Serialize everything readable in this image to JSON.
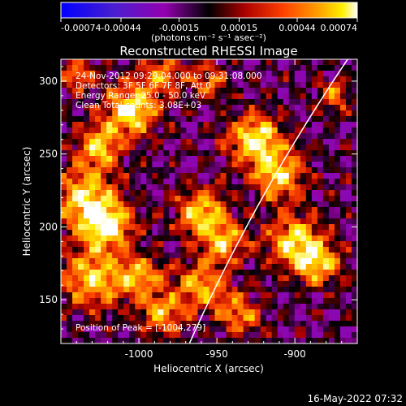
{
  "chart_data": {
    "type": "heatmap",
    "title": "Reconstructed RHESSI Image",
    "xlabel": "Heliocentric X (arcsec)",
    "ylabel": "Heliocentric Y (arcsec)",
    "xlim": [
      -1050,
      -860
    ],
    "ylim": [
      120,
      315
    ],
    "x_ticks": [
      "-1000",
      "-950",
      "-900"
    ],
    "y_ticks": [
      "150",
      "200",
      "250",
      "300"
    ],
    "x_tick_values": [
      -1000,
      -950,
      -900
    ],
    "y_tick_values": [
      150,
      200,
      250,
      300
    ],
    "colorbar": {
      "ticks": [
        "-0.00074",
        "-0.00044",
        "-0.00015",
        "0.00015",
        "0.00044",
        "0.00074"
      ],
      "units": "(photons cm⁻² s⁻¹ asec⁻²)",
      "min": -0.00074,
      "max": 0.00074,
      "colormap": [
        "#0000ff",
        "#5522cc",
        "#9900aa",
        "#000000",
        "#aa0000",
        "#ff4400",
        "#ff9900",
        "#ffee00",
        "#ffffff"
      ]
    },
    "annotations": [
      "24-Nov-2012 09:29:04.000 to 09:31:08.000",
      "Detectors: 3F 5F 6F 7F 8F, Att 0",
      "Energy Range: 25.0 - 50.0 keV",
      "Clean      Total counts: 3.08E+03"
    ],
    "peak_label": "Position of Peak = [-1004,279]",
    "peak": {
      "x": -1004,
      "y": 279
    },
    "limb": true
  },
  "footer": {
    "timestamp": "16-May-2022 07:32"
  }
}
